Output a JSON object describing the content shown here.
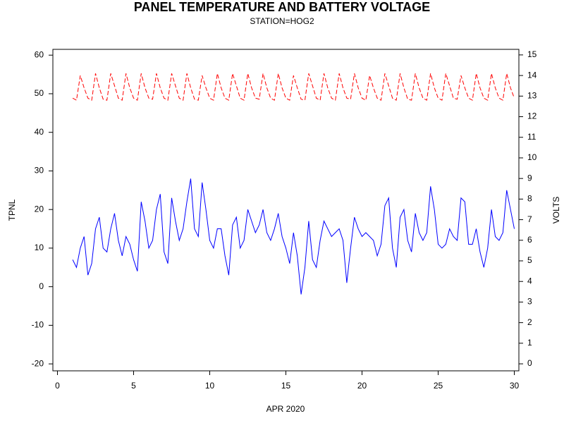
{
  "chart_data": {
    "type": "line",
    "title": "PANEL TEMPERATURE AND BATTERY VOLTAGE",
    "subtitle": "STATION=HOG2",
    "xlabel": "APR 2020",
    "ylabel": "TPNL",
    "y2label": "VOLTS",
    "xlim": [
      -0.3,
      30.3
    ],
    "xticks": [
      0,
      5,
      10,
      15,
      20,
      25,
      30
    ],
    "ylim": [
      -21.8,
      61.5
    ],
    "yticks": [
      -20,
      -10,
      0,
      10,
      20,
      30,
      40,
      50,
      60
    ],
    "y2lim": [
      -0.34,
      15.27
    ],
    "y2ticks": [
      0,
      1,
      2,
      3,
      4,
      5,
      6,
      7,
      8,
      9,
      10,
      11,
      12,
      13,
      14,
      15
    ],
    "x": [
      1,
      1.25,
      1.5,
      1.75,
      2,
      2.25,
      2.5,
      2.75,
      3,
      3.25,
      3.5,
      3.75,
      4,
      4.25,
      4.5,
      4.75,
      5,
      5.25,
      5.5,
      5.75,
      6,
      6.25,
      6.5,
      6.75,
      7,
      7.25,
      7.5,
      7.75,
      8,
      8.25,
      8.5,
      8.75,
      9,
      9.25,
      9.5,
      9.75,
      10,
      10.25,
      10.5,
      10.75,
      11,
      11.25,
      11.5,
      11.75,
      12,
      12.25,
      12.5,
      12.75,
      13,
      13.25,
      13.5,
      13.75,
      14,
      14.25,
      14.5,
      14.75,
      15,
      15.25,
      15.5,
      15.75,
      16,
      16.25,
      16.5,
      16.75,
      17,
      17.25,
      17.5,
      17.75,
      18,
      18.25,
      18.5,
      18.75,
      19,
      19.25,
      19.5,
      19.75,
      20,
      20.25,
      20.5,
      20.75,
      21,
      21.25,
      21.5,
      21.75,
      22,
      22.25,
      22.5,
      22.75,
      23,
      23.25,
      23.5,
      23.75,
      24,
      24.25,
      24.5,
      24.75,
      25,
      25.25,
      25.5,
      25.75,
      26,
      26.25,
      26.5,
      26.75,
      27,
      27.25,
      27.5,
      27.75,
      28,
      28.25,
      28.5,
      28.75,
      29,
      29.25,
      29.5,
      29.75,
      30
    ],
    "series": [
      {
        "name": "TPNL",
        "color": "#0000ff",
        "dash": false,
        "values": [
          7,
          5,
          10,
          13,
          3,
          6,
          15,
          18,
          10,
          9,
          15,
          19,
          12,
          8,
          13,
          11,
          7,
          4,
          22,
          17,
          10,
          12,
          20,
          24,
          9,
          6,
          23,
          17,
          12,
          15,
          22,
          28,
          15,
          13,
          27,
          20,
          12,
          10,
          15,
          15,
          8,
          3,
          16,
          18,
          10,
          12,
          20,
          17,
          14,
          16,
          20,
          14,
          12,
          15,
          19,
          13,
          10,
          6,
          14,
          8,
          -2,
          5,
          17,
          7,
          5,
          12,
          17,
          15,
          13,
          14,
          15,
          12,
          1,
          10,
          18,
          15,
          13,
          14,
          13,
          12,
          8,
          11,
          21,
          23,
          10,
          5,
          18,
          20,
          12,
          9,
          19,
          14,
          12,
          14,
          26,
          20,
          11,
          10,
          11,
          15,
          13,
          12,
          23,
          22,
          11,
          11,
          15,
          9,
          5,
          10,
          20,
          13,
          12,
          14,
          25,
          20,
          15
        ]
      },
      {
        "name": "VOLTS",
        "color": "#ff0000",
        "dash": true,
        "axis": "y2",
        "values": [
          12.9,
          12.8,
          14.0,
          13.4,
          12.9,
          12.8,
          14.1,
          13.4,
          12.85,
          12.8,
          14.1,
          13.5,
          12.9,
          12.8,
          14.1,
          13.4,
          12.9,
          12.8,
          14.1,
          13.4,
          12.9,
          12.85,
          14.1,
          13.4,
          12.9,
          12.8,
          14.1,
          13.5,
          12.9,
          12.8,
          14.1,
          13.4,
          12.85,
          12.8,
          14.0,
          13.4,
          12.9,
          12.8,
          14.1,
          13.4,
          12.9,
          12.8,
          14.1,
          13.5,
          12.9,
          12.8,
          14.1,
          13.4,
          12.9,
          12.85,
          14.1,
          13.4,
          12.9,
          12.8,
          14.1,
          13.4,
          12.9,
          12.8,
          14.0,
          13.4,
          12.85,
          12.8,
          14.1,
          13.5,
          12.9,
          12.8,
          14.1,
          13.4,
          12.9,
          12.8,
          14.1,
          13.4,
          12.9,
          12.85,
          14.1,
          13.4,
          12.9,
          12.8,
          14.0,
          13.4,
          12.9,
          12.8,
          14.1,
          13.5,
          12.9,
          12.8,
          14.1,
          13.4,
          12.85,
          12.8,
          14.1,
          13.4,
          12.9,
          12.8,
          14.1,
          13.4,
          12.9,
          12.8,
          14.1,
          13.5,
          12.9,
          12.85,
          14.0,
          13.4,
          12.9,
          12.8,
          14.1,
          13.4,
          12.9,
          12.8,
          14.1,
          13.4,
          12.9,
          12.8,
          14.1,
          13.4,
          12.9
        ]
      }
    ]
  }
}
